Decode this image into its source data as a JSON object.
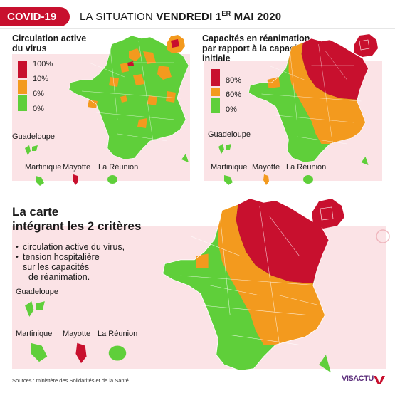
{
  "header": {
    "badge": "COVID-19",
    "title_prefix": "LA SITUATION ",
    "title_day": "VENDREDI 1",
    "title_sup": "ER",
    "title_suffix": " MAI 2020"
  },
  "panel_circulation": {
    "title_line1": "Circulation active",
    "title_line2": "du virus",
    "legend": [
      {
        "label": "100%",
        "color": "#c8102e"
      },
      {
        "label": "10%",
        "color": "#c8102e"
      },
      {
        "label": "6%",
        "color": "#f39a1e"
      },
      {
        "label": "0%",
        "color": "#5fcf3a"
      }
    ],
    "overseas": {
      "guadeloupe": "Guadeloupe",
      "martinique": "Martinique",
      "mayotte": "Mayotte",
      "reunion": "La Réunion"
    }
  },
  "panel_reanimation": {
    "title_line1": "Capacités en réanimation",
    "title_line2": "par rapport à la capacité",
    "title_line3": "initiale",
    "legend": [
      {
        "label": "80%",
        "color": "#c8102e"
      },
      {
        "label": "60%",
        "color": "#f39a1e"
      },
      {
        "label": "0%",
        "color": "#5fcf3a"
      }
    ],
    "overseas": {
      "guadeloupe": "Guadeloupe",
      "martinique": "Martinique",
      "mayotte": "Mayotte",
      "reunion": "La Réunion"
    }
  },
  "panel_combined": {
    "title_line1": "La carte",
    "title_line2": "intégrant les 2 critères",
    "criteria": [
      "circulation active du virus,",
      "tension hospitalière",
      "sur les capacités",
      "de réanimation."
    ],
    "overseas": {
      "guadeloupe": "Guadeloupe",
      "martinique": "Martinique",
      "mayotte": "Mayotte",
      "reunion": "La Réunion"
    }
  },
  "colors": {
    "red": "#c8102e",
    "orange": "#f39a1e",
    "green": "#5fcf3a",
    "pink": "#fbe3e6"
  },
  "footer": {
    "source": "Sources : ministère des Solidarités et de la Santé.",
    "brand": "VISACTU"
  }
}
